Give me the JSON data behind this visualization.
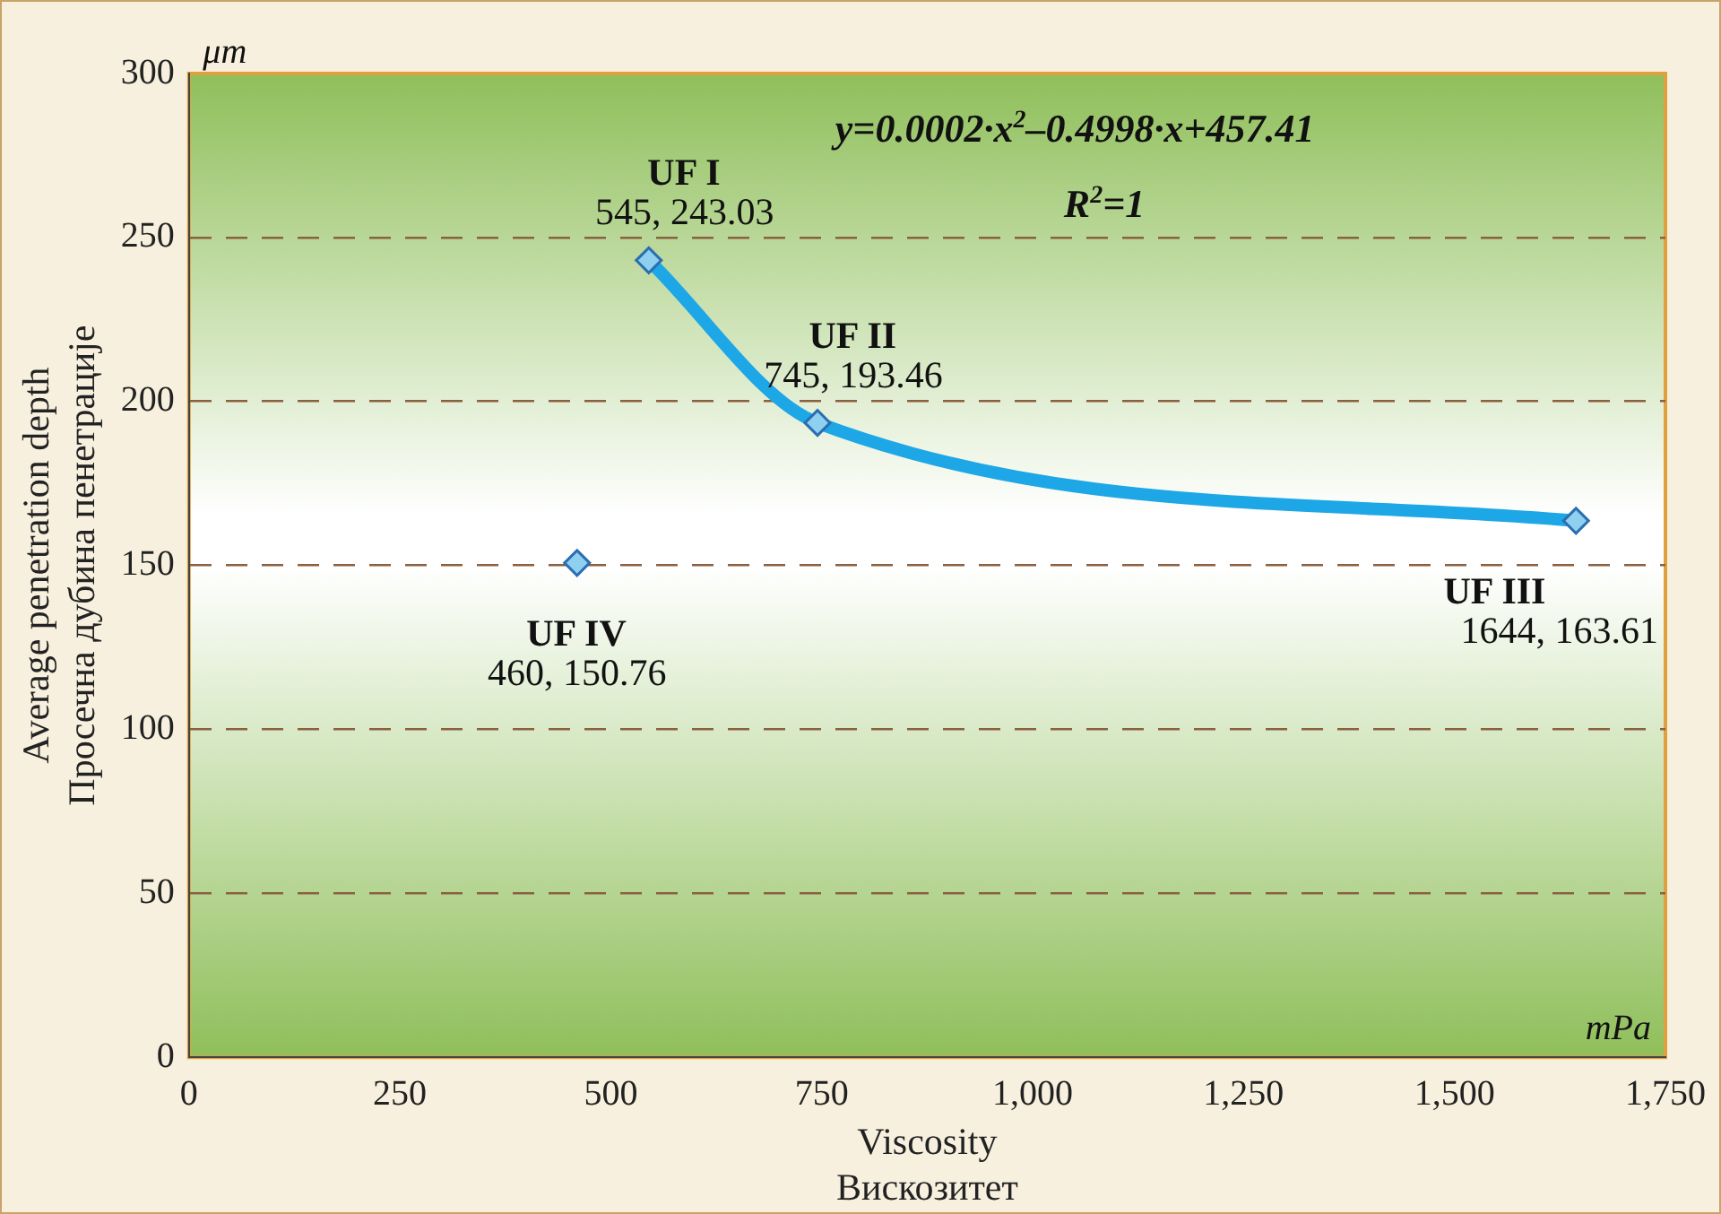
{
  "chart_data": {
    "type": "scatter",
    "xlabel": "Viscosity\nВискозитет",
    "ylabel": "Average penetration depth\nПросечна дубина пенетрације",
    "xlim": [
      0,
      1750
    ],
    "xticks": [
      0,
      250,
      500,
      750,
      {
        "value": 1000,
        "label": "1,000"
      },
      {
        "value": 1250,
        "label": "1,250"
      },
      {
        "value": 1500,
        "label": "1,500"
      },
      {
        "value": 1750,
        "label": "1,750"
      }
    ],
    "ylim": [
      0,
      300
    ],
    "yticks": [
      0,
      50,
      100,
      150,
      200,
      250,
      300
    ],
    "grid": "y",
    "legend": false,
    "marker": "diamond",
    "series": [
      {
        "type": "line",
        "color": "#1ea7e6",
        "x": [
          545,
          745,
          1644
        ],
        "values": [
          243.03,
          193.46,
          163.61
        ],
        "value_labels": [
          "545, 243.03",
          "745, 193.46",
          "1644, 163.61"
        ]
      },
      {
        "type": "scatter",
        "color": "#8fd0f0",
        "x": [
          460
        ],
        "values": [
          150.76
        ],
        "value_labels": [
          "460, 150.76"
        ]
      }
    ],
    "annotations": [
      {
        "text": "UF I",
        "x": 545,
        "y": 243.03
      },
      {
        "text": "UF II",
        "x": 745,
        "y": 193.46
      },
      {
        "text": "UF III",
        "x": 1644,
        "y": 163.61
      },
      {
        "text": "UF IV",
        "x": 460,
        "y": 150.76
      },
      "y=0.0002·x$^{2}$–0.4998·x+457.41",
      "R$^{2}$=1",
      "μm",
      "mPa"
    ]
  }
}
